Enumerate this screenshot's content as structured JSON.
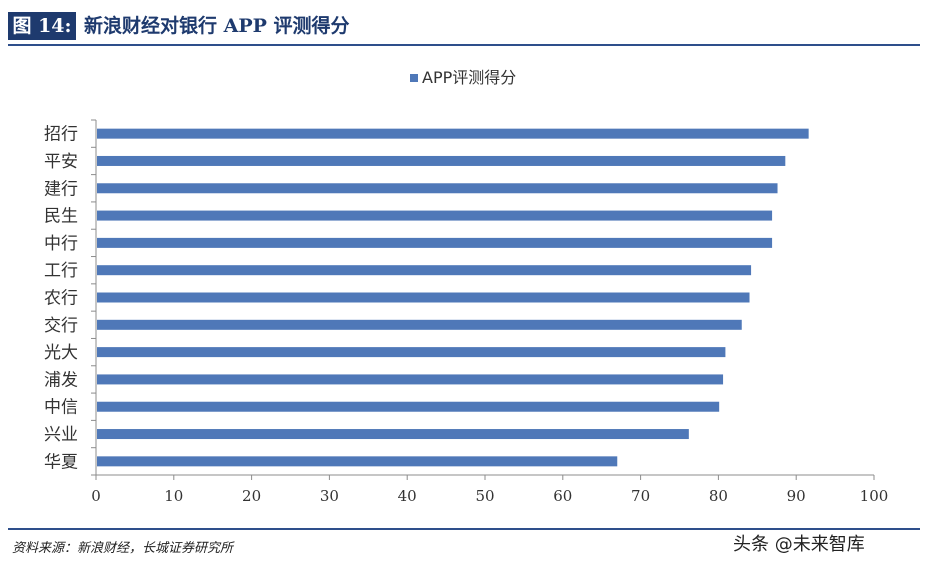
{
  "header": {
    "figure_label": "图 14:",
    "title": "新浪财经对银行 APP 评测得分"
  },
  "colors": {
    "bar": "#4f78b8",
    "heading": "#1e3a6e",
    "rule": "#2e4f8b"
  },
  "chart_data": {
    "type": "bar",
    "orientation": "horizontal",
    "title": "",
    "xlabel": "",
    "ylabel": "",
    "legend": {
      "placement": "top-center",
      "entries": [
        "APP评测得分"
      ]
    },
    "categories": [
      "招行",
      "平安",
      "建行",
      "民生",
      "中行",
      "工行",
      "农行",
      "交行",
      "光大",
      "浦发",
      "中信",
      "兴业",
      "华夏"
    ],
    "series": [
      {
        "name": "APP评测得分",
        "values": [
          91.6,
          88.6,
          87.6,
          86.9,
          86.9,
          84.2,
          84.0,
          83.0,
          80.9,
          80.6,
          80.1,
          76.2,
          67.0
        ]
      }
    ],
    "xlim": [
      0,
      100
    ],
    "xticks": [
      "0",
      "10",
      "20",
      "30",
      "40",
      "50",
      "60",
      "70",
      "80",
      "90",
      "100"
    ],
    "grid": false
  },
  "footer": {
    "source": "资料来源：新浪财经，长城证券研究所",
    "watermark": "头条 @未来智库"
  }
}
